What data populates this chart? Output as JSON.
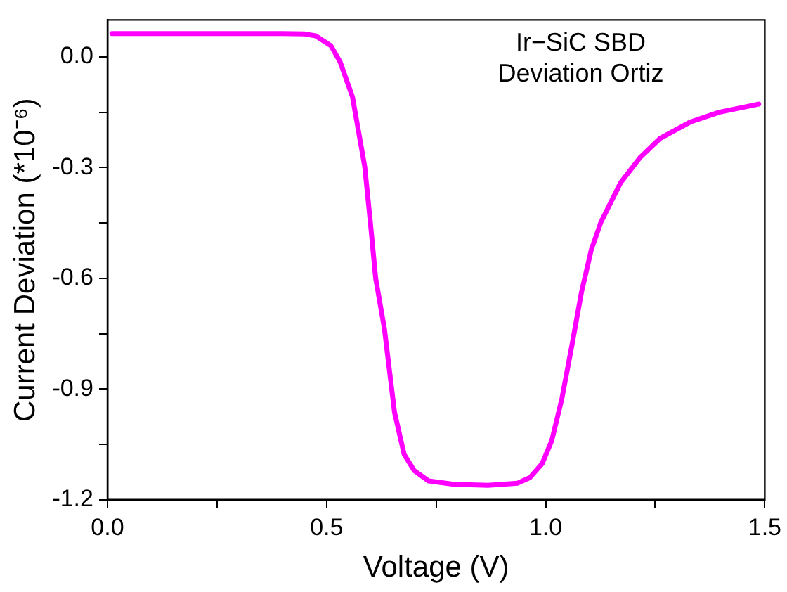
{
  "chart_data": {
    "type": "line",
    "xlabel": "Voltage (V)",
    "ylabel": "Current Deviation (*10⁻⁶)",
    "annotations": [
      "Ir−SiC SBD",
      "Deviation Ortiz"
    ],
    "xlim": [
      0,
      1.5
    ],
    "xticks": [
      {
        "value": 0,
        "label": "0.0"
      },
      {
        "value": 0.25,
        "label": null
      },
      {
        "value": 0.5,
        "label": "0.5"
      },
      {
        "value": 0.75,
        "label": null
      },
      {
        "value": 1,
        "label": "1.0"
      },
      {
        "value": 1.25,
        "label": null
      },
      {
        "value": 1.5,
        "label": "1.5"
      }
    ],
    "ylim": [
      -1.2,
      0.1
    ],
    "yticks": [
      {
        "value": -1.2,
        "label": "-1.2"
      },
      {
        "value": -1.05,
        "label": null
      },
      {
        "value": -0.9,
        "label": "-0.9"
      },
      {
        "value": -0.75,
        "label": null
      },
      {
        "value": -0.6,
        "label": "-0.6"
      },
      {
        "value": -0.45,
        "label": null
      },
      {
        "value": -0.3,
        "label": "-0.3"
      },
      {
        "value": -0.15,
        "label": null
      },
      {
        "value": 0,
        "label": "0.0"
      }
    ],
    "grid": false,
    "legend": false,
    "marker": "none",
    "line_style": "solid",
    "series": [
      {
        "color": "#ff00ff",
        "x": [
          0.01,
          0.2,
          0.4,
          0.45,
          0.475,
          0.51,
          0.531,
          0.559,
          0.587,
          0.6,
          0.612,
          0.632,
          0.655,
          0.677,
          0.7,
          0.733,
          0.79,
          0.868,
          0.936,
          0.964,
          0.992,
          1.014,
          1.037,
          1.059,
          1.082,
          1.104,
          1.126,
          1.171,
          1.216,
          1.261,
          1.329,
          1.396,
          1.486
        ],
        "values": [
          0.063,
          0.063,
          0.063,
          0.062,
          0.057,
          0.03,
          -0.014,
          -0.108,
          -0.297,
          -0.45,
          -0.6,
          -0.737,
          -0.963,
          -1.077,
          -1.121,
          -1.149,
          -1.158,
          -1.161,
          -1.155,
          -1.14,
          -1.102,
          -1.039,
          -0.926,
          -0.787,
          -0.636,
          -0.523,
          -0.448,
          -0.341,
          -0.272,
          -0.221,
          -0.177,
          -0.15,
          -0.128
        ]
      }
    ]
  }
}
